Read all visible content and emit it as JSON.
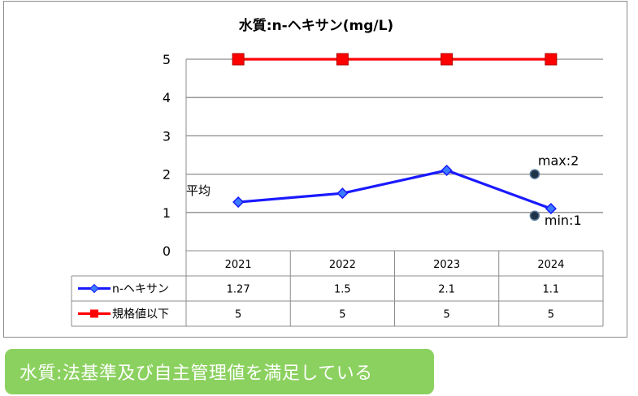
{
  "chart_data": {
    "type": "line",
    "title": "水質:n-ヘキサン(mg/L)",
    "categories": [
      "2021",
      "2022",
      "2023",
      "2024"
    ],
    "ylim": [
      0,
      5
    ],
    "yticks": [
      "0",
      "1",
      "2",
      "3",
      "4",
      "5"
    ],
    "grid": true,
    "legend": "data-table",
    "series": [
      {
        "name": "n-ヘキサン",
        "values": [
          1.27,
          1.5,
          2.1,
          1.1
        ],
        "value_labels": [
          "1.27",
          "1.5",
          "2.1",
          "1.1"
        ],
        "color": "#1a1aff",
        "marker": "diamond"
      },
      {
        "name": "規格値以下",
        "values": [
          5,
          5,
          5,
          5
        ],
        "value_labels": [
          "5",
          "5",
          "5",
          "5"
        ],
        "color": "#ff0000",
        "marker": "square"
      }
    ],
    "annotations": {
      "average_label": "平均",
      "max": {
        "label": "max:2",
        "category": "2024",
        "value": 2
      },
      "min": {
        "label": "min:1",
        "category": "2024",
        "value": 1
      }
    }
  },
  "banner": {
    "text": "水質:法基準及び自主管理値を満足している",
    "color": "#8bd15f"
  }
}
